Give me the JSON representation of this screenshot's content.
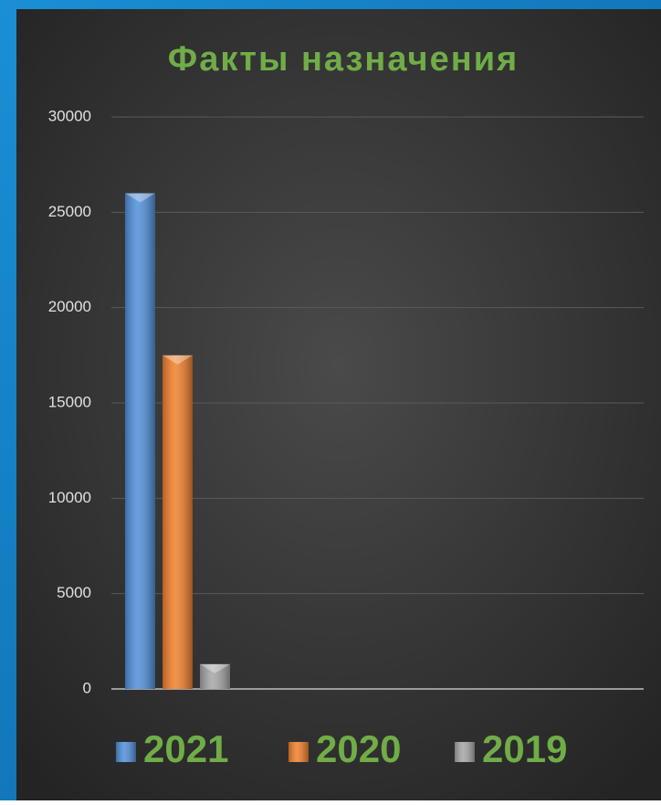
{
  "chart_data": {
    "type": "bar",
    "title": "Факты назначения",
    "categories": [
      null
    ],
    "series": [
      {
        "name": "2021",
        "color": "#4f8fd9",
        "values": [
          26000
        ]
      },
      {
        "name": "2020",
        "color": "#f07f2a",
        "values": [
          17500
        ]
      },
      {
        "name": "2019",
        "color": "#a6a6a6",
        "values": [
          1300
        ]
      }
    ],
    "ylim": [
      0,
      30000
    ],
    "yticks": [
      0,
      5000,
      10000,
      15000,
      20000,
      25000,
      30000
    ],
    "grid": true,
    "legend": "bottom"
  }
}
